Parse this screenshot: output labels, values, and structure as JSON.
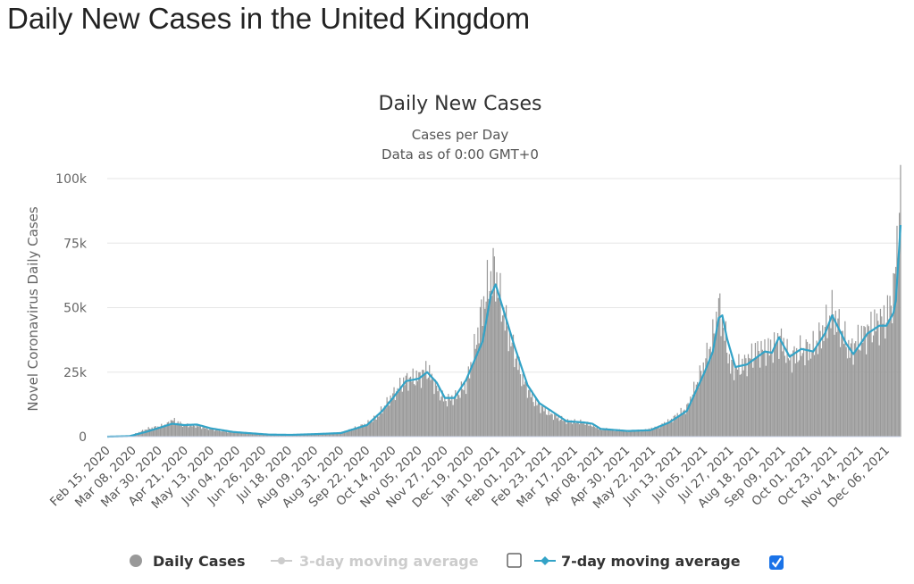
{
  "page": {
    "title": "Daily New Cases in the United Kingdom"
  },
  "colors": {
    "bars": "#999999",
    "line7": "#33a3c7",
    "line3_disabled": "#cccccc",
    "grid": "#e6e6e6",
    "checkbox_on": "#1a73e8"
  },
  "legend": {
    "position": "bottom",
    "items": [
      {
        "label": "Daily Cases",
        "enabled": true,
        "marker": "circle-icon"
      },
      {
        "label": "3-day moving average",
        "enabled": false,
        "marker": "line-circle-icon",
        "checkbox": false
      },
      {
        "label": "7-day moving average",
        "enabled": true,
        "marker": "line-diamond-icon",
        "checkbox": true
      }
    ]
  },
  "chart_data": {
    "type": "bar",
    "title": "Daily New Cases",
    "subtitle_lines": [
      "Cases per Day",
      "Data as of 0:00 GMT+0"
    ],
    "ylabel": "Novel Coronavirus Daily Cases",
    "xlabel": "",
    "ylim": [
      0,
      100000
    ],
    "yticks": [
      0,
      25000,
      50000,
      75000,
      100000
    ],
    "ytick_labels": [
      "0",
      "25k",
      "50k",
      "75k",
      "100k"
    ],
    "grid": true,
    "x_tick_labels": [
      "Feb 15, 2020",
      "Mar 08, 2020",
      "Mar 30, 2020",
      "Apr 21, 2020",
      "May 13, 2020",
      "Jun 04, 2020",
      "Jun 26, 2020",
      "Jul 18, 2020",
      "Aug 09, 2020",
      "Aug 31, 2020",
      "Sep 22, 2020",
      "Oct 14, 2020",
      "Nov 05, 2020",
      "Nov 27, 2020",
      "Dec 19, 2020",
      "Jan 10, 2021",
      "Feb 01, 2021",
      "Feb 23, 2021",
      "Mar 17, 2021",
      "Apr 08, 2021",
      "Apr 30, 2021",
      "May 22, 2021",
      "Jun 13, 2021",
      "Jul 05, 2021",
      "Jul 27, 2021",
      "Aug 18, 2021",
      "Sep 09, 2021",
      "Oct 01, 2021",
      "Oct 23, 2021",
      "Nov 14, 2021",
      "Dec 06, 2021"
    ],
    "series": [
      {
        "name": "Daily Cases",
        "type": "bar",
        "start_date": "2020-02-15",
        "end_date": "2021-12-18",
        "anchors": [
          [
            "2020-02-15",
            0
          ],
          [
            "2020-03-05",
            200
          ],
          [
            "2020-03-20",
            3000
          ],
          [
            "2020-04-05",
            4500
          ],
          [
            "2020-04-10",
            6500
          ],
          [
            "2020-04-20",
            4500
          ],
          [
            "2020-05-01",
            4200
          ],
          [
            "2020-05-10",
            3200
          ],
          [
            "2020-05-25",
            2000
          ],
          [
            "2020-06-15",
            1200
          ],
          [
            "2020-07-01",
            700
          ],
          [
            "2020-07-20",
            700
          ],
          [
            "2020-08-10",
            900
          ],
          [
            "2020-08-31",
            1500
          ],
          [
            "2020-09-10",
            3000
          ],
          [
            "2020-09-22",
            5000
          ],
          [
            "2020-10-01",
            8000
          ],
          [
            "2020-10-14",
            16000
          ],
          [
            "2020-10-25",
            22000
          ],
          [
            "2020-11-05",
            23000
          ],
          [
            "2020-11-12",
            26000
          ],
          [
            "2020-11-20",
            19000
          ],
          [
            "2020-11-27",
            14000
          ],
          [
            "2020-12-05",
            15000
          ],
          [
            "2020-12-15",
            20000
          ],
          [
            "2020-12-22",
            33000
          ],
          [
            "2020-12-29",
            50000
          ],
          [
            "2021-01-04",
            60000
          ],
          [
            "2021-01-08",
            65000
          ],
          [
            "2021-01-12",
            55000
          ],
          [
            "2021-01-20",
            40000
          ],
          [
            "2021-02-01",
            22000
          ],
          [
            "2021-02-12",
            13000
          ],
          [
            "2021-02-23",
            9000
          ],
          [
            "2021-03-10",
            6000
          ],
          [
            "2021-03-25",
            5500
          ],
          [
            "2021-04-08",
            3000
          ],
          [
            "2021-04-30",
            2200
          ],
          [
            "2021-05-15",
            2500
          ],
          [
            "2021-05-25",
            3500
          ],
          [
            "2021-06-05",
            6000
          ],
          [
            "2021-06-20",
            11000
          ],
          [
            "2021-07-05",
            28000
          ],
          [
            "2021-07-12",
            38000
          ],
          [
            "2021-07-17",
            50000
          ],
          [
            "2021-07-20",
            45000
          ],
          [
            "2021-07-27",
            27000
          ],
          [
            "2021-08-05",
            27000
          ],
          [
            "2021-08-18",
            33000
          ],
          [
            "2021-08-31",
            34000
          ],
          [
            "2021-09-07",
            38000
          ],
          [
            "2021-09-15",
            30000
          ],
          [
            "2021-09-25",
            33000
          ],
          [
            "2021-10-05",
            34000
          ],
          [
            "2021-10-15",
            42000
          ],
          [
            "2021-10-21",
            48000
          ],
          [
            "2021-10-30",
            40000
          ],
          [
            "2021-11-05",
            33000
          ],
          [
            "2021-11-14",
            38000
          ],
          [
            "2021-11-25",
            43000
          ],
          [
            "2021-12-06",
            46000
          ],
          [
            "2021-12-12",
            55000
          ],
          [
            "2021-12-15",
            75000
          ],
          [
            "2021-12-18",
            91000
          ]
        ]
      },
      {
        "name": "7-day moving average",
        "type": "line",
        "anchors": [
          [
            "2020-02-15",
            0
          ],
          [
            "2020-03-05",
            200
          ],
          [
            "2020-03-20",
            2000
          ],
          [
            "2020-04-10",
            5000
          ],
          [
            "2020-04-20",
            4500
          ],
          [
            "2020-05-01",
            4700
          ],
          [
            "2020-05-13",
            3200
          ],
          [
            "2020-06-01",
            1800
          ],
          [
            "2020-07-01",
            800
          ],
          [
            "2020-07-20",
            700
          ],
          [
            "2020-08-10",
            1000
          ],
          [
            "2020-08-31",
            1400
          ],
          [
            "2020-09-22",
            4500
          ],
          [
            "2020-10-05",
            10000
          ],
          [
            "2020-10-14",
            15000
          ],
          [
            "2020-10-25",
            21500
          ],
          [
            "2020-11-05",
            22500
          ],
          [
            "2020-11-12",
            25000
          ],
          [
            "2020-11-20",
            21000
          ],
          [
            "2020-11-27",
            15000
          ],
          [
            "2020-12-05",
            15000
          ],
          [
            "2020-12-15",
            22000
          ],
          [
            "2020-12-29",
            37000
          ],
          [
            "2021-01-05",
            55000
          ],
          [
            "2021-01-09",
            59000
          ],
          [
            "2021-01-15",
            50000
          ],
          [
            "2021-01-25",
            35000
          ],
          [
            "2021-02-05",
            20000
          ],
          [
            "2021-02-15",
            13000
          ],
          [
            "2021-02-25",
            10000
          ],
          [
            "2021-03-10",
            6000
          ],
          [
            "2021-03-25",
            5500
          ],
          [
            "2021-04-01",
            5000
          ],
          [
            "2021-04-08",
            3000
          ],
          [
            "2021-05-01",
            2200
          ],
          [
            "2021-05-20",
            2500
          ],
          [
            "2021-06-05",
            5500
          ],
          [
            "2021-06-20",
            10000
          ],
          [
            "2021-07-05",
            25000
          ],
          [
            "2021-07-12",
            33000
          ],
          [
            "2021-07-17",
            46000
          ],
          [
            "2021-07-20",
            47000
          ],
          [
            "2021-07-24",
            38000
          ],
          [
            "2021-07-31",
            27000
          ],
          [
            "2021-08-10",
            28000
          ],
          [
            "2021-08-25",
            33000
          ],
          [
            "2021-08-31",
            32500
          ],
          [
            "2021-09-06",
            38500
          ],
          [
            "2021-09-15",
            31000
          ],
          [
            "2021-09-25",
            34000
          ],
          [
            "2021-10-05",
            33000
          ],
          [
            "2021-10-15",
            40000
          ],
          [
            "2021-10-21",
            47000
          ],
          [
            "2021-11-02",
            36000
          ],
          [
            "2021-11-08",
            32000
          ],
          [
            "2021-11-20",
            40000
          ],
          [
            "2021-11-30",
            43000
          ],
          [
            "2021-12-06",
            43000
          ],
          [
            "2021-12-12",
            48000
          ],
          [
            "2021-12-14",
            53000
          ],
          [
            "2021-12-18",
            82000
          ]
        ]
      }
    ]
  }
}
